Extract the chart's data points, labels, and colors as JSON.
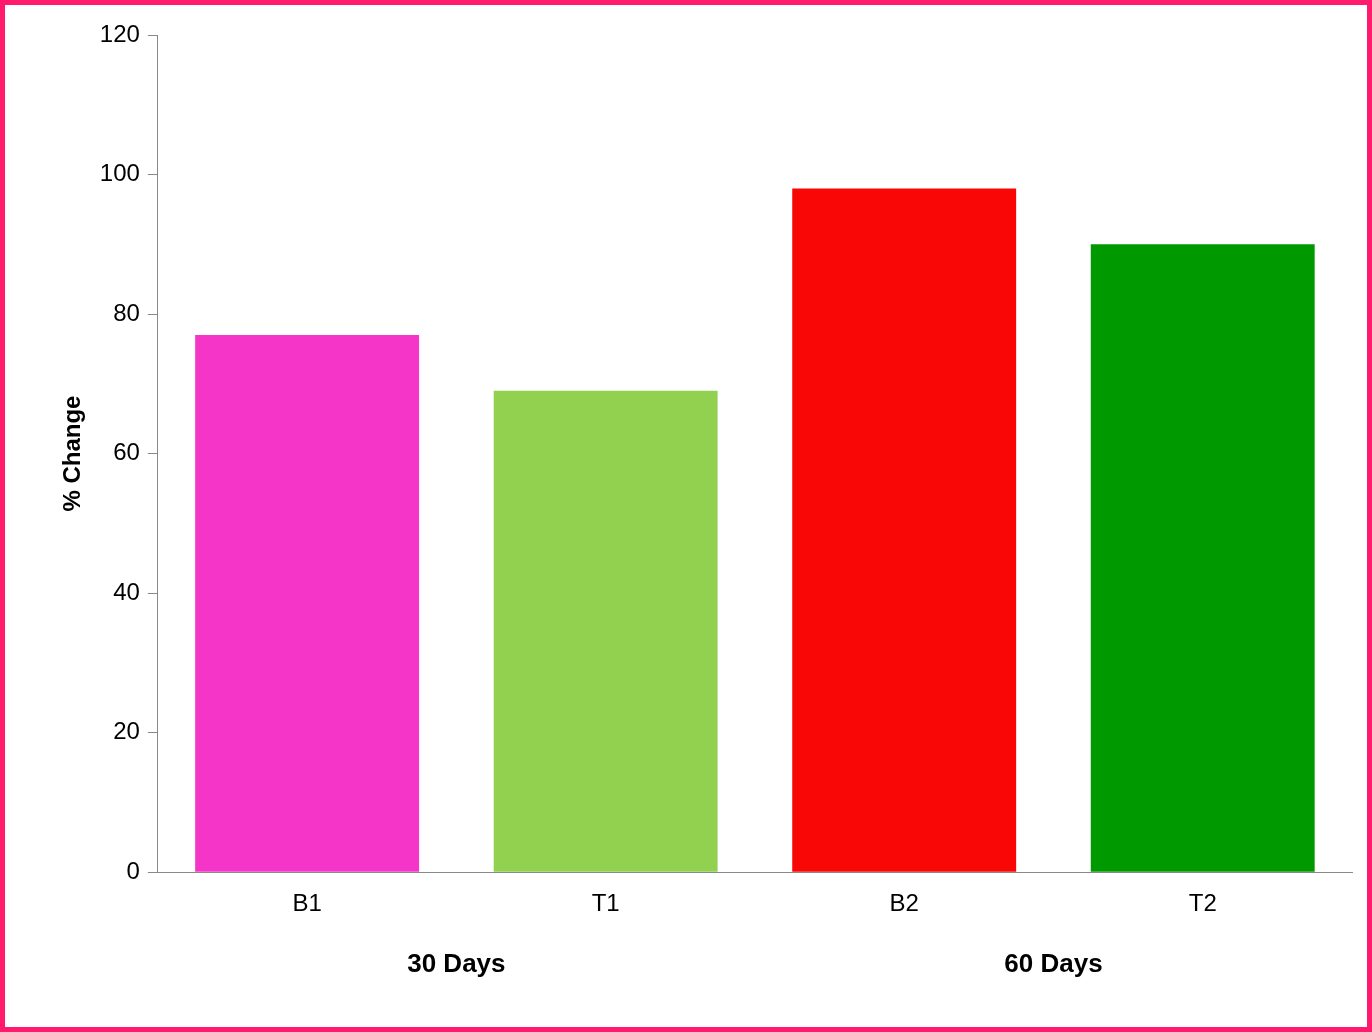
{
  "chart_data": {
    "type": "bar",
    "ylabel": "% Change",
    "categories": [
      "B1",
      "T1",
      "B2",
      "T2"
    ],
    "values": [
      77,
      69,
      98,
      90
    ],
    "colors": [
      "#f535c8",
      "#92d050",
      "#f90606",
      "#009a00"
    ],
    "ylim": [
      0,
      120
    ],
    "yticks": [
      0,
      20,
      40,
      60,
      80,
      100,
      120
    ],
    "grid": false,
    "legend": false,
    "annotations": [
      "30 Days",
      "60 Days"
    ]
  }
}
